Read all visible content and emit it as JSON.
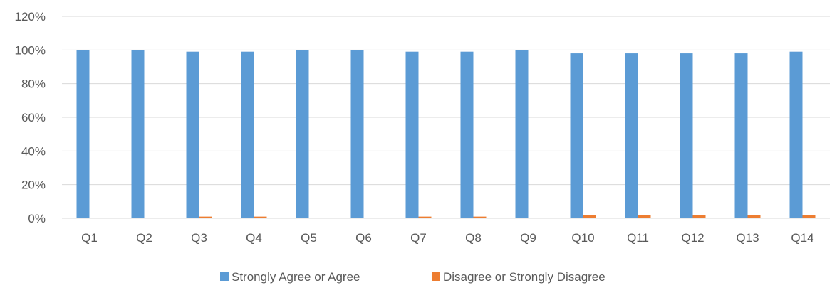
{
  "chart_data": {
    "type": "bar",
    "title": "",
    "xlabel": "",
    "ylabel": "",
    "categories": [
      "Q1",
      "Q2",
      "Q3",
      "Q4",
      "Q5",
      "Q6",
      "Q7",
      "Q8",
      "Q9",
      "Q10",
      "Q11",
      "Q12",
      "Q13",
      "Q14"
    ],
    "series": [
      {
        "name": "Strongly Agree or Agree",
        "color": "#5b9bd5",
        "values": [
          100,
          100,
          99,
          99,
          100,
          100,
          99,
          99,
          100,
          98,
          98,
          98,
          98,
          99
        ]
      },
      {
        "name": "Disagree or Strongly Disagree",
        "color": "#ed7d31",
        "values": [
          0,
          0,
          1,
          1,
          0,
          0,
          1,
          1,
          0,
          2,
          2,
          2,
          2,
          2
        ]
      }
    ],
    "ylim": [
      0,
      120
    ],
    "yticks": [
      0,
      20,
      40,
      60,
      80,
      100,
      120
    ],
    "ytick_labels": [
      "0%",
      "20%",
      "40%",
      "60%",
      "80%",
      "100%",
      "120%"
    ],
    "grid": true,
    "legend_position": "bottom"
  }
}
